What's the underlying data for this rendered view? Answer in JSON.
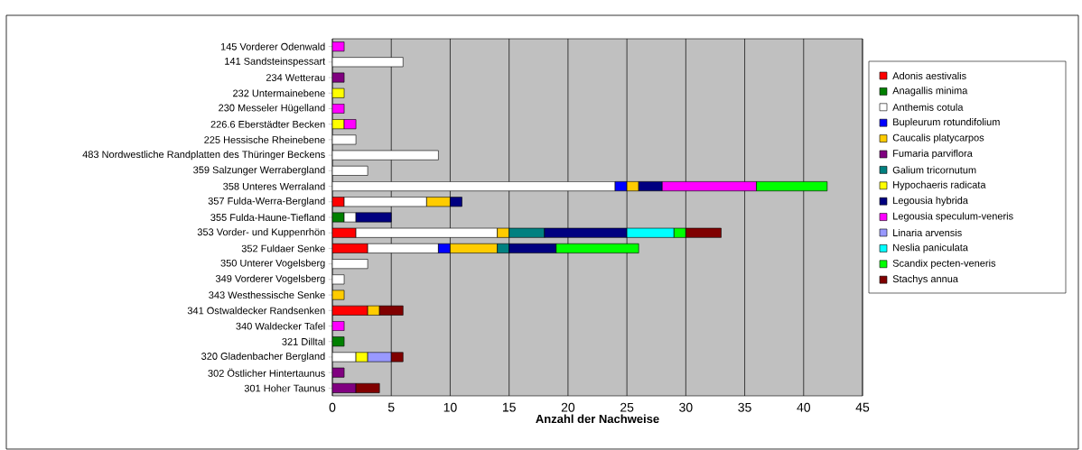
{
  "chart_data": {
    "type": "bar",
    "orientation": "horizontal",
    "stacked": true,
    "grid": "x",
    "legend": "right",
    "xlabel": "Anzahl der Nachweise",
    "xlim": [
      0,
      45
    ],
    "xticks": [
      0,
      5,
      10,
      15,
      20,
      25,
      30,
      35,
      40,
      45
    ],
    "categories": [
      "145 Vorderer Odenwald",
      "141 Sandsteinspessart",
      "234 Wetterau",
      "232 Untermainebene",
      "230 Messeler Hügelland",
      "226.6 Eberstädter Becken",
      "225 Hessische Rheinebene",
      "483 Nordwestliche Randplatten des Thüringer Beckens",
      "359 Salzunger Werrabergland",
      "358 Unteres Werraland",
      "357 Fulda-Werra-Bergland",
      "355 Fulda-Haune-Tiefland",
      "353 Vorder- und Kuppenrhön",
      "352 Fuldaer Senke",
      "350 Unterer Vogelsberg",
      "349 Vorderer Vogelsberg",
      "343 Westhessische Senke",
      "341 Ostwaldecker Randsenken",
      "340 Waldecker Tafel",
      "321 Dilltal",
      "320 Gladenbacher Bergland",
      "302 Östlicher Hintertaunus",
      "301 Hoher Taunus"
    ],
    "series": [
      {
        "name": "Adonis aestivalis",
        "color": "#ff0000",
        "values": [
          null,
          null,
          null,
          null,
          null,
          null,
          null,
          null,
          null,
          null,
          1,
          null,
          2,
          3,
          null,
          null,
          null,
          3,
          null,
          null,
          null,
          null,
          null
        ]
      },
      {
        "name": "Anagallis minima",
        "color": "#008000",
        "values": [
          null,
          null,
          null,
          null,
          null,
          null,
          null,
          null,
          null,
          null,
          null,
          1,
          null,
          null,
          null,
          null,
          null,
          null,
          null,
          1,
          null,
          null,
          null
        ]
      },
      {
        "name": "Anthemis cotula",
        "color": "#ffffff",
        "values": [
          null,
          6,
          null,
          null,
          null,
          null,
          2,
          9,
          3,
          24,
          7,
          1,
          12,
          6,
          3,
          1,
          null,
          null,
          null,
          null,
          2,
          null,
          null
        ]
      },
      {
        "name": "Bupleurum rotundifolium",
        "color": "#0000ff",
        "values": [
          null,
          null,
          null,
          null,
          null,
          null,
          null,
          null,
          null,
          1,
          null,
          null,
          null,
          1,
          null,
          null,
          null,
          null,
          null,
          null,
          null,
          null,
          null
        ]
      },
      {
        "name": "Caucalis platycarpos",
        "color": "#ffcc00",
        "values": [
          null,
          null,
          null,
          null,
          null,
          null,
          null,
          null,
          null,
          1,
          2,
          null,
          1,
          4,
          null,
          null,
          1,
          1,
          null,
          null,
          null,
          null,
          null
        ]
      },
      {
        "name": "Fumaria parviflora",
        "color": "#800080",
        "values": [
          null,
          null,
          1,
          null,
          null,
          null,
          null,
          null,
          null,
          null,
          null,
          null,
          null,
          null,
          null,
          null,
          null,
          null,
          null,
          null,
          null,
          1,
          2
        ]
      },
      {
        "name": "Galium tricornutum",
        "color": "#008080",
        "values": [
          null,
          null,
          null,
          null,
          null,
          null,
          null,
          null,
          null,
          null,
          null,
          null,
          3,
          1,
          null,
          null,
          null,
          null,
          null,
          null,
          null,
          null,
          null
        ]
      },
      {
        "name": "Hypochaeris radicata",
        "color": "#ffff00",
        "values": [
          null,
          null,
          null,
          1,
          null,
          1,
          null,
          null,
          null,
          null,
          null,
          null,
          null,
          null,
          null,
          null,
          null,
          null,
          null,
          null,
          1,
          null,
          null
        ]
      },
      {
        "name": "Legousia hybrida",
        "color": "#000080",
        "values": [
          null,
          null,
          null,
          null,
          null,
          null,
          null,
          null,
          null,
          2,
          1,
          3,
          7,
          4,
          null,
          null,
          null,
          null,
          null,
          null,
          null,
          null,
          null
        ]
      },
      {
        "name": "Legousia speculum-veneris",
        "color": "#ff00ff",
        "values": [
          1,
          null,
          null,
          null,
          1,
          1,
          null,
          null,
          null,
          8,
          null,
          null,
          null,
          null,
          null,
          null,
          null,
          null,
          1,
          null,
          null,
          null,
          null
        ]
      },
      {
        "name": "Linaria arvensis",
        "color": "#9999ff",
        "values": [
          null,
          null,
          null,
          null,
          null,
          null,
          null,
          null,
          null,
          null,
          null,
          null,
          null,
          null,
          null,
          null,
          null,
          null,
          null,
          null,
          2,
          null,
          null
        ]
      },
      {
        "name": "Neslia paniculata",
        "color": "#00ffff",
        "values": [
          null,
          null,
          null,
          null,
          null,
          null,
          null,
          null,
          null,
          null,
          null,
          null,
          4,
          null,
          null,
          null,
          null,
          null,
          null,
          null,
          null,
          null,
          null
        ]
      },
      {
        "name": "Scandix pecten-veneris",
        "color": "#00ff00",
        "values": [
          null,
          null,
          null,
          null,
          null,
          null,
          null,
          null,
          null,
          6,
          null,
          null,
          1,
          7,
          null,
          null,
          null,
          null,
          null,
          null,
          null,
          null,
          null
        ]
      },
      {
        "name": "Stachys annua",
        "color": "#800000",
        "values": [
          null,
          null,
          null,
          null,
          null,
          null,
          null,
          null,
          null,
          null,
          null,
          null,
          3,
          null,
          null,
          null,
          null,
          2,
          null,
          null,
          1,
          null,
          2
        ]
      }
    ]
  }
}
